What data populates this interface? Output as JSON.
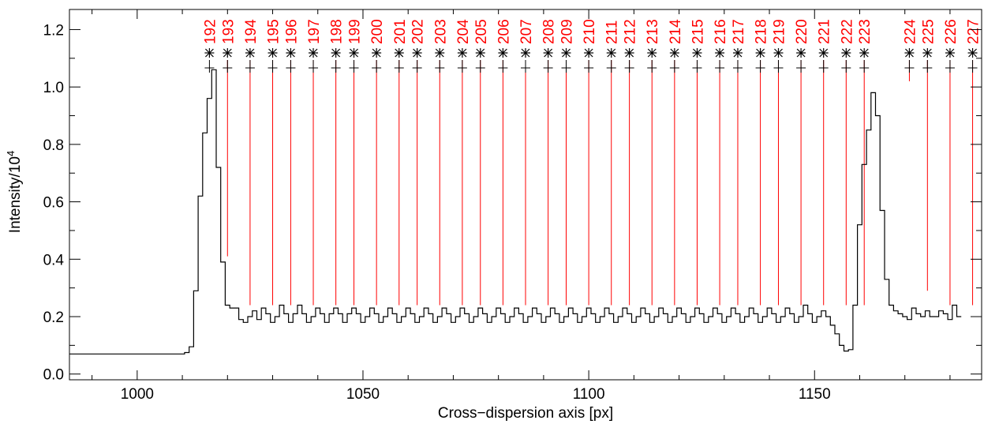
{
  "chart_data": {
    "type": "line",
    "xlabel": "Cross−dispersion axis [px]",
    "ylabel": "Intensity/10",
    "ylabel_exponent": "4",
    "xlim": [
      985,
      1187
    ],
    "ylim": [
      -0.02,
      1.27
    ],
    "xticks": [
      1000,
      1050,
      1100,
      1150
    ],
    "xtick_labels": [
      "1000",
      "1050",
      "1100",
      "1150"
    ],
    "yticks": [
      0.0,
      0.2,
      0.4,
      0.6,
      0.8,
      1.0,
      1.2
    ],
    "ytick_labels": [
      "0.0",
      "0.2",
      "0.4",
      "0.6",
      "0.8",
      "1.0",
      "1.2"
    ],
    "grid": false,
    "colors": {
      "profile": "#000000",
      "markers": "#ff0000"
    },
    "profile": {
      "style": "step",
      "x_start": 985,
      "y": [
        0.07,
        0.07,
        0.07,
        0.07,
        0.07,
        0.07,
        0.07,
        0.07,
        0.07,
        0.07,
        0.07,
        0.07,
        0.07,
        0.07,
        0.07,
        0.07,
        0.07,
        0.07,
        0.07,
        0.07,
        0.07,
        0.07,
        0.07,
        0.07,
        0.07,
        0.07,
        0.075,
        0.095,
        0.29,
        0.62,
        0.84,
        0.96,
        1.06,
        0.72,
        0.39,
        0.24,
        0.23,
        0.23,
        0.19,
        0.18,
        0.2,
        0.22,
        0.19,
        0.23,
        0.21,
        0.18,
        0.2,
        0.24,
        0.21,
        0.18,
        0.21,
        0.24,
        0.21,
        0.18,
        0.2,
        0.23,
        0.21,
        0.18,
        0.21,
        0.23,
        0.21,
        0.18,
        0.21,
        0.23,
        0.21,
        0.18,
        0.2,
        0.23,
        0.21,
        0.18,
        0.2,
        0.23,
        0.21,
        0.18,
        0.2,
        0.23,
        0.21,
        0.18,
        0.2,
        0.23,
        0.21,
        0.18,
        0.2,
        0.23,
        0.21,
        0.18,
        0.2,
        0.23,
        0.21,
        0.18,
        0.2,
        0.23,
        0.21,
        0.18,
        0.2,
        0.23,
        0.21,
        0.18,
        0.2,
        0.23,
        0.21,
        0.18,
        0.2,
        0.23,
        0.21,
        0.18,
        0.2,
        0.23,
        0.21,
        0.18,
        0.2,
        0.23,
        0.21,
        0.18,
        0.2,
        0.23,
        0.21,
        0.18,
        0.2,
        0.23,
        0.21,
        0.18,
        0.2,
        0.23,
        0.21,
        0.18,
        0.2,
        0.23,
        0.21,
        0.18,
        0.2,
        0.23,
        0.21,
        0.18,
        0.2,
        0.23,
        0.21,
        0.18,
        0.2,
        0.23,
        0.21,
        0.18,
        0.2,
        0.23,
        0.21,
        0.18,
        0.2,
        0.23,
        0.21,
        0.18,
        0.2,
        0.23,
        0.21,
        0.18,
        0.2,
        0.23,
        0.21,
        0.18,
        0.2,
        0.23,
        0.21,
        0.18,
        0.2,
        0.24,
        0.21,
        0.18,
        0.2,
        0.22,
        0.2,
        0.17,
        0.14,
        0.1,
        0.08,
        0.085,
        0.24,
        0.52,
        0.73,
        0.85,
        0.98,
        0.9,
        0.57,
        0.33,
        0.24,
        0.22,
        0.21,
        0.2,
        0.19,
        0.23,
        0.21,
        0.2,
        0.22,
        0.2,
        0.2,
        0.22,
        0.21,
        0.19,
        0.24,
        0.2
      ]
    },
    "peaks": {
      "labels": [
        "192",
        "193",
        "194",
        "195",
        "196",
        "197",
        "198",
        "199",
        "200",
        "201",
        "202",
        "203",
        "204",
        "205",
        "206",
        "207",
        "208",
        "209",
        "210",
        "211",
        "212",
        "213",
        "214",
        "215",
        "216",
        "217",
        "218",
        "219",
        "220",
        "221",
        "222",
        "223",
        "224",
        "225",
        "226",
        "227"
      ],
      "x": [
        1016,
        1020,
        1025,
        1030,
        1034,
        1039,
        1044,
        1048,
        1053,
        1058,
        1062,
        1067,
        1072,
        1076,
        1081,
        1086,
        1091,
        1095,
        1100,
        1105,
        1109,
        1114,
        1119,
        1124,
        1129,
        1133,
        1138,
        1142,
        1147,
        1152,
        1157,
        1161,
        1171,
        1175,
        1180,
        1185
      ],
      "line_bottom": [
        null,
        0.41,
        0.24,
        0.24,
        0.24,
        0.24,
        0.24,
        0.24,
        0.24,
        0.24,
        0.24,
        0.24,
        0.24,
        0.24,
        0.24,
        0.24,
        0.24,
        0.24,
        0.24,
        0.24,
        0.24,
        0.24,
        0.24,
        0.24,
        0.24,
        0.24,
        0.24,
        0.24,
        0.24,
        0.24,
        0.24,
        0.24,
        1.02,
        0.29,
        0.24,
        0.24
      ]
    }
  }
}
